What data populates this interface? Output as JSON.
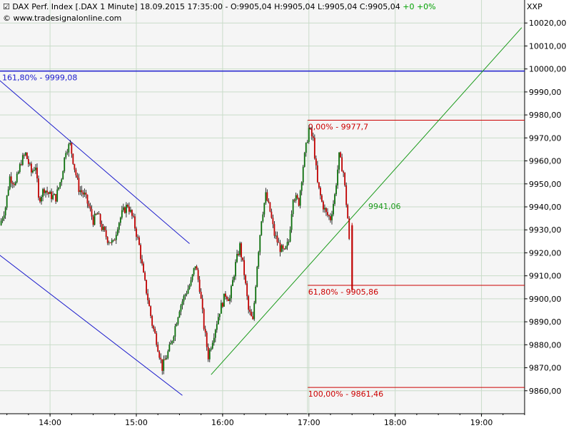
{
  "header": {
    "check_icon": "checkbox-icon",
    "title": "DAX Perf. Index [.DAX  1 Minute]",
    "datetime": "18.09.2015 17:35:00",
    "ohlc": "O:9905,04 H:9905,04 L:9905,04 C:9905,04",
    "change": "+0 +0%",
    "website_icon": "copyright-icon",
    "website": "www.tradesignalonline.com",
    "provider": "XXP"
  },
  "colors": {
    "plot_bg": "#f5f5f5",
    "grid": "#c9dcc9",
    "up_candle": "#0a6e0a",
    "down_candle": "#c00000",
    "channel": "#1a1acc",
    "trend": "#1a9a1a",
    "fib": "#cc0000",
    "level_blue": "#1a1acc"
  },
  "chart_data": {
    "type": "candlestick",
    "title": "DAX Perf. Index [.DAX  1 Minute]",
    "ylim": [
      9850,
      10030
    ],
    "y_ticks": [
      "9860,00",
      "9870,00",
      "9880,00",
      "9890,00",
      "9900,00",
      "9910,00",
      "9920,00",
      "9930,00",
      "9940,00",
      "9950,00",
      "9960,00",
      "9970,00",
      "9980,00",
      "9990,00",
      "10000,00",
      "10010,00",
      "10020,00"
    ],
    "x_ticks": [
      "14:00",
      "15:00",
      "16:00",
      "17:00",
      "18:00",
      "19:00"
    ],
    "x_range_hours": [
      13.42,
      19.5
    ],
    "close_series": [
      [
        "13:25",
        9932
      ],
      [
        "13:29",
        9940
      ],
      [
        "13:32",
        9953
      ],
      [
        "13:36",
        9950
      ],
      [
        "13:40",
        9960
      ],
      [
        "13:43",
        9963
      ],
      [
        "13:47",
        9955
      ],
      [
        "13:50",
        9958
      ],
      [
        "13:52",
        9943
      ],
      [
        "13:56",
        9948
      ],
      [
        "14:00",
        9945
      ],
      [
        "14:04",
        9944
      ],
      [
        "14:08",
        9953
      ],
      [
        "14:11",
        9965
      ],
      [
        "14:14",
        9967
      ],
      [
        "14:17",
        9957
      ],
      [
        "14:20",
        9948
      ],
      [
        "14:24",
        9945
      ],
      [
        "14:27",
        9940
      ],
      [
        "14:30",
        9934
      ],
      [
        "14:33",
        9937
      ],
      [
        "14:36",
        9931
      ],
      [
        "14:40",
        9926
      ],
      [
        "14:44",
        9924
      ],
      [
        "14:47",
        9932
      ],
      [
        "14:50",
        9937
      ],
      [
        "14:54",
        9941
      ],
      [
        "14:58",
        9934
      ],
      [
        "15:02",
        9923
      ],
      [
        "15:05",
        9910
      ],
      [
        "15:08",
        9900
      ],
      [
        "15:11",
        9889
      ],
      [
        "15:14",
        9882
      ],
      [
        "15:18",
        9870
      ],
      [
        "15:21",
        9875
      ],
      [
        "15:24",
        9880
      ],
      [
        "15:27",
        9888
      ],
      [
        "15:30",
        9896
      ],
      [
        "15:34",
        9902
      ],
      [
        "15:38",
        9907
      ],
      [
        "15:41",
        9915
      ],
      [
        "15:44",
        9905
      ],
      [
        "15:47",
        9888
      ],
      [
        "15:50",
        9875
      ],
      [
        "15:54",
        9885
      ],
      [
        "15:58",
        9895
      ],
      [
        "16:02",
        9902
      ],
      [
        "16:05",
        9900
      ],
      [
        "16:09",
        9915
      ],
      [
        "16:12",
        9923
      ],
      [
        "16:15",
        9911
      ],
      [
        "16:18",
        9895
      ],
      [
        "16:21",
        9890
      ],
      [
        "16:24",
        9915
      ],
      [
        "16:27",
        9935
      ],
      [
        "16:30",
        9945
      ],
      [
        "16:33",
        9938
      ],
      [
        "16:36",
        9928
      ],
      [
        "16:40",
        9922
      ],
      [
        "16:43",
        9920
      ],
      [
        "16:46",
        9925
      ],
      [
        "16:49",
        9945
      ],
      [
        "16:53",
        9942
      ],
      [
        "16:56",
        9958
      ],
      [
        "17:00",
        9974
      ],
      [
        "17:03",
        9969
      ],
      [
        "17:06",
        9950
      ],
      [
        "17:09",
        9942
      ],
      [
        "17:12",
        9937
      ],
      [
        "17:15",
        9935
      ],
      [
        "17:18",
        9945
      ],
      [
        "17:21",
        9962
      ],
      [
        "17:24",
        9955
      ],
      [
        "17:27",
        9935
      ],
      [
        "17:30",
        9905
      ],
      [
        "17:35",
        9905.04
      ]
    ],
    "channel_upper": [
      [
        "13:25",
        9995
      ],
      [
        "15:37",
        9924
      ]
    ],
    "channel_lower": [
      [
        "13:25",
        9919
      ],
      [
        "15:32",
        9858
      ]
    ],
    "trendline": [
      [
        "15:52",
        9867
      ],
      [
        "19:28",
        10018
      ]
    ],
    "trend_value_label": "9941,06",
    "level_161": {
      "value": 9999.08,
      "label": "161,80% - 9999,08"
    },
    "fib_levels": [
      {
        "value": 9977.7,
        "label": "0,00% - 9977,7"
      },
      {
        "value": 9905.86,
        "label": "61,80% - 9905,86"
      },
      {
        "value": 9861.46,
        "label": "100,00% - 9861,46"
      }
    ],
    "fib_start": "16:59"
  }
}
